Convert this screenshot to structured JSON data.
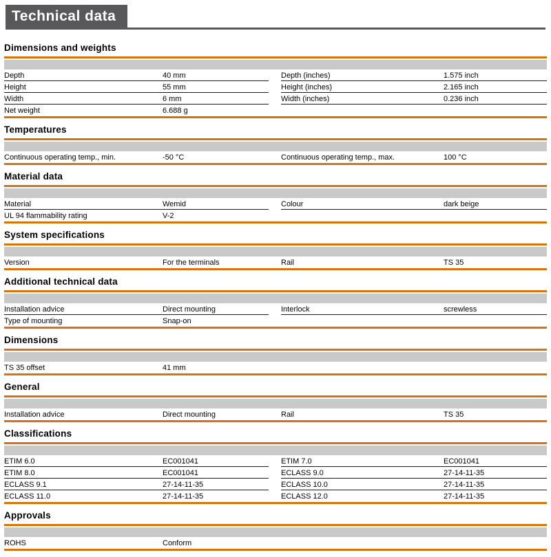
{
  "page_title": "Technical data",
  "colors": {
    "accent_orange": "#D7730F",
    "header_gray": "#58585A",
    "table_header_gray": "#C9C9C9"
  },
  "sections": [
    {
      "title": "Dimensions and weights",
      "rows": [
        {
          "left": {
            "label": "Depth",
            "value": "40 mm"
          },
          "right": {
            "label": "Depth (inches)",
            "value": "1.575 inch"
          }
        },
        {
          "left": {
            "label": "Height",
            "value": "55 mm"
          },
          "right": {
            "label": "Height (inches)",
            "value": "2.165 inch"
          }
        },
        {
          "left": {
            "label": "Width",
            "value": "6 mm"
          },
          "right": {
            "label": "Width (inches)",
            "value": "0.236 inch"
          }
        },
        {
          "left": {
            "label": "Net weight",
            "value": "6.688 g"
          },
          "right": null
        }
      ]
    },
    {
      "title": "Temperatures",
      "rows": [
        {
          "left": {
            "label": "Continuous operating temp., min.",
            "value": "-50 °C"
          },
          "right": {
            "label": "Continuous operating temp., max.",
            "value": "100 °C"
          }
        }
      ]
    },
    {
      "title": "Material data",
      "rows": [
        {
          "left": {
            "label": "Material",
            "value": "Wemid"
          },
          "right": {
            "label": "Colour",
            "value": "dark beige"
          }
        },
        {
          "left": {
            "label": "UL 94 flammability rating",
            "value": "V-2"
          },
          "right": null
        }
      ]
    },
    {
      "title": "System specifications",
      "rows": [
        {
          "left": {
            "label": "Version",
            "value": "For the terminals"
          },
          "right": {
            "label": "Rail",
            "value": "TS 35"
          }
        }
      ]
    },
    {
      "title": "Additional technical data",
      "rows": [
        {
          "left": {
            "label": "Installation advice",
            "value": "Direct mounting"
          },
          "right": {
            "label": "Interlock",
            "value": "screwless"
          }
        },
        {
          "left": {
            "label": "Type of mounting",
            "value": "Snap-on"
          },
          "right": null
        }
      ]
    },
    {
      "title": "Dimensions",
      "rows": [
        {
          "left": {
            "label": "TS 35 offset",
            "value": "41 mm"
          },
          "right": null
        }
      ]
    },
    {
      "title": "General",
      "rows": [
        {
          "left": {
            "label": "Installation advice",
            "value": "Direct mounting"
          },
          "right": {
            "label": "Rail",
            "value": "TS 35"
          }
        }
      ]
    },
    {
      "title": "Classifications",
      "rows": [
        {
          "left": {
            "label": "ETIM 6.0",
            "value": "EC001041"
          },
          "right": {
            "label": "ETIM 7.0",
            "value": "EC001041"
          }
        },
        {
          "left": {
            "label": "ETIM 8.0",
            "value": "EC001041"
          },
          "right": {
            "label": "ECLASS 9.0",
            "value": "27-14-11-35"
          }
        },
        {
          "left": {
            "label": "ECLASS 9.1",
            "value": "27-14-11-35"
          },
          "right": {
            "label": "ECLASS 10.0",
            "value": "27-14-11-35"
          }
        },
        {
          "left": {
            "label": "ECLASS 11.0",
            "value": "27-14-11-35"
          },
          "right": {
            "label": "ECLASS 12.0",
            "value": "27-14-11-35"
          }
        }
      ]
    },
    {
      "title": "Approvals",
      "rows": [
        {
          "left": {
            "label": "ROHS",
            "value": "Conform"
          },
          "right": null
        }
      ]
    }
  ]
}
